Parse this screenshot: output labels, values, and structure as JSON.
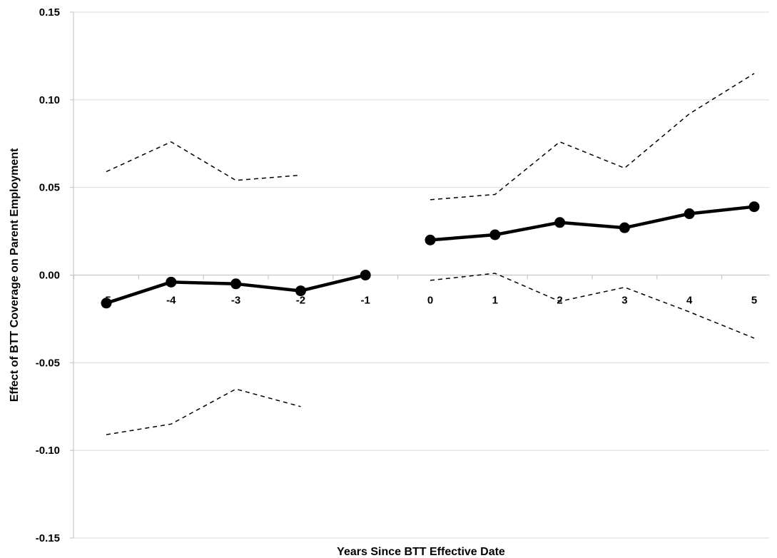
{
  "chart_data": {
    "type": "line",
    "title": "",
    "xlabel": "Years Since BTT Effective Date",
    "ylabel": "Effect of BTT Coverage on Parent Employment",
    "ylim": [
      -0.15,
      0.15
    ],
    "y_ticks": [
      "0.15",
      "0.10",
      "0.05",
      "0.00",
      "-0.05",
      "-0.10",
      "-0.15"
    ],
    "y_tick_values": [
      0.15,
      0.1,
      0.05,
      0.0,
      -0.05,
      -0.1,
      -0.15
    ],
    "categories": [
      "-5",
      "-4",
      "-3",
      "-2",
      "-1",
      "0",
      "1",
      "2",
      "3",
      "4",
      "5"
    ],
    "grid": true,
    "legend": "none",
    "series": [
      {
        "style": "solid-with-markers",
        "color": "#000000",
        "segments": [
          {
            "x": [
              -5,
              -4,
              -3,
              -2,
              -1
            ],
            "y": [
              -0.016,
              -0.004,
              -0.005,
              -0.009,
              0.0
            ]
          },
          {
            "x": [
              0,
              1,
              2,
              3,
              4,
              5
            ],
            "y": [
              0.02,
              0.023,
              0.03,
              0.027,
              0.035,
              0.039
            ]
          }
        ]
      },
      {
        "style": "dashed",
        "color": "#000000",
        "segments": [
          {
            "x": [
              -5,
              -4,
              -3,
              -2
            ],
            "y": [
              0.059,
              0.076,
              0.054,
              0.057
            ]
          },
          {
            "x": [
              0,
              1,
              2,
              3,
              4,
              5
            ],
            "y": [
              0.043,
              0.046,
              0.076,
              0.061,
              0.092,
              0.115
            ]
          }
        ]
      },
      {
        "style": "dashed",
        "color": "#000000",
        "segments": [
          {
            "x": [
              -5,
              -4,
              -3,
              -2
            ],
            "y": [
              -0.091,
              -0.085,
              -0.065,
              -0.075
            ]
          },
          {
            "x": [
              0,
              1,
              2,
              3,
              4,
              5
            ],
            "y": [
              -0.003,
              0.001,
              -0.015,
              -0.007,
              -0.021,
              -0.036
            ]
          }
        ]
      }
    ]
  }
}
